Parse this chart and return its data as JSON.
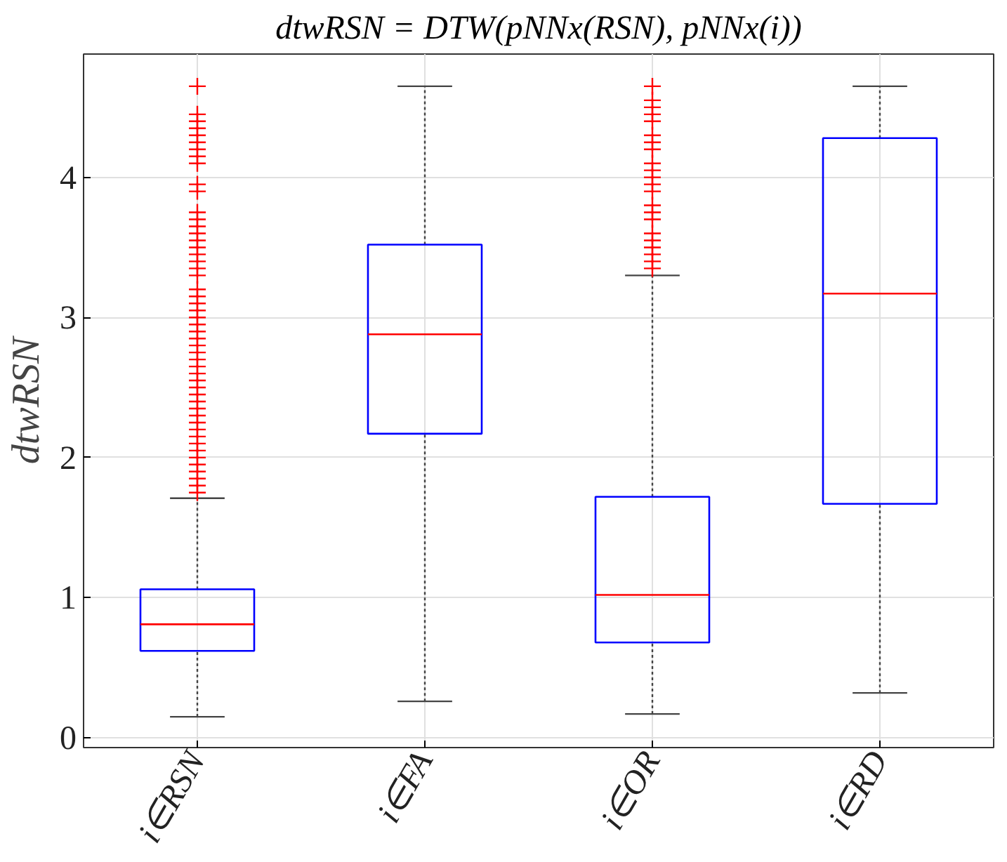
{
  "chart_data": {
    "type": "box",
    "title": "dtwRSN = DTW(pNNx(RSN), pNNx(i))",
    "ylabel": "dtwRSN",
    "categories": [
      "i∈RSN",
      "i∈FA",
      "i∈OR",
      "i∈RD"
    ],
    "series": [
      {
        "color": "#0000ff",
        "boxes": [
          {
            "low": 0.15,
            "q1": 0.62,
            "median": 0.81,
            "q3": 1.06,
            "high": 1.71,
            "outliers": [
              1.75,
              1.8,
              1.85,
              1.9,
              1.95,
              2.0,
              2.05,
              2.1,
              2.15,
              2.2,
              2.25,
              2.3,
              2.35,
              2.4,
              2.45,
              2.5,
              2.55,
              2.6,
              2.65,
              2.7,
              2.75,
              2.8,
              2.85,
              2.9,
              2.95,
              3.0,
              3.05,
              3.1,
              3.15,
              3.2,
              3.3,
              3.35,
              3.4,
              3.45,
              3.5,
              3.55,
              3.6,
              3.65,
              3.7,
              3.75,
              3.9,
              3.95,
              4.1,
              4.15,
              4.2,
              4.25,
              4.3,
              4.35,
              4.4,
              4.45,
              4.65
            ]
          },
          {
            "low": 0.26,
            "q1": 2.17,
            "median": 2.88,
            "q3": 3.52,
            "high": 4.65
          },
          {
            "low": 0.17,
            "q1": 0.68,
            "median": 1.02,
            "q3": 1.72,
            "high": 3.3,
            "outliers": [
              3.35,
              3.4,
              3.45,
              3.5,
              3.55,
              3.6,
              3.7,
              3.75,
              3.8,
              3.9,
              3.95,
              4.0,
              4.05,
              4.1,
              4.2,
              4.25,
              4.3,
              4.4,
              4.45,
              4.5,
              4.55,
              4.65
            ]
          },
          {
            "low": 0.32,
            "q1": 1.67,
            "median": 3.17,
            "q3": 4.28,
            "high": 4.65
          }
        ]
      }
    ],
    "ylim": [
      -0.07,
      4.88
    ],
    "yticks": [
      0,
      1,
      2,
      3,
      4
    ],
    "grid": true,
    "marker": "cross"
  }
}
